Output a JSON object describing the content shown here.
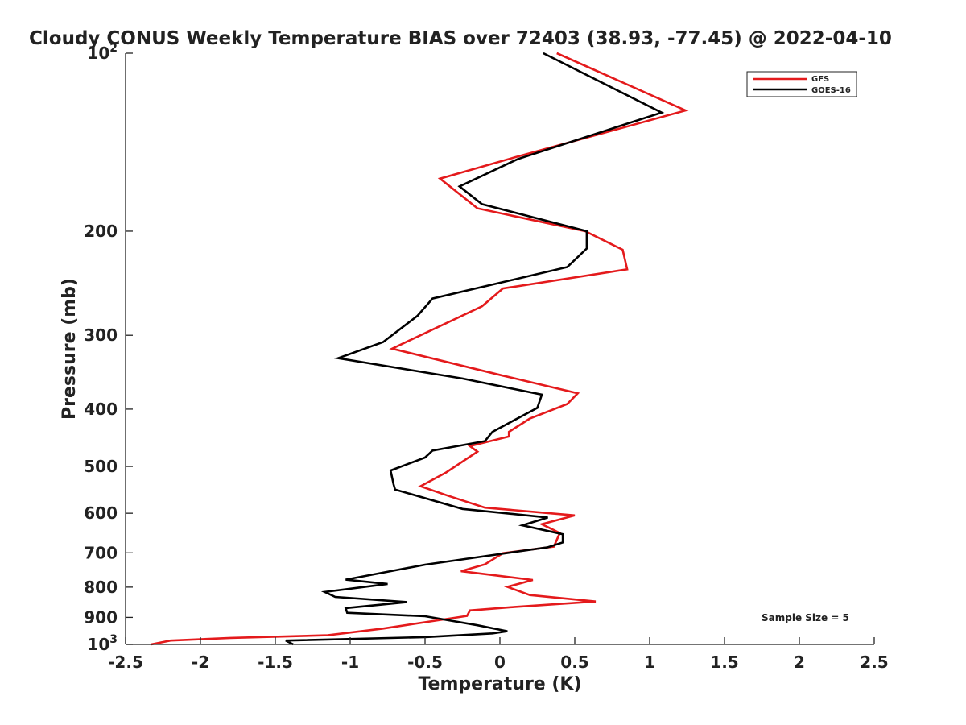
{
  "chart_data": {
    "type": "line",
    "title": "Cloudy CONUS Weekly Temperature BIAS over 72403 (38.93, -77.45) @ 2022-04-10",
    "xlabel": "Temperature (K)",
    "ylabel": "Pressure (mb)",
    "xlim": [
      -2.5,
      2.5
    ],
    "ylim": [
      100,
      1000
    ],
    "y_scale": "log",
    "y_reversed": true,
    "grid": false,
    "legend_position": "top-right",
    "x_ticks": [
      {
        "value": -2.5,
        "label": "-2.5"
      },
      {
        "value": -2,
        "label": "-2"
      },
      {
        "value": -1.5,
        "label": "-1.5"
      },
      {
        "value": -1,
        "label": "-1"
      },
      {
        "value": -0.5,
        "label": "-0.5"
      },
      {
        "value": 0,
        "label": "0"
      },
      {
        "value": 0.5,
        "label": "0.5"
      },
      {
        "value": 1,
        "label": "1"
      },
      {
        "value": 1.5,
        "label": "1.5"
      },
      {
        "value": 2,
        "label": "2"
      },
      {
        "value": 2.5,
        "label": "2.5"
      }
    ],
    "y_ticks": [
      {
        "value": 100,
        "label": "10",
        "sup": "2"
      },
      {
        "value": 200,
        "label": "200"
      },
      {
        "value": 300,
        "label": "300"
      },
      {
        "value": 400,
        "label": "400"
      },
      {
        "value": 500,
        "label": "500"
      },
      {
        "value": 600,
        "label": "600"
      },
      {
        "value": 700,
        "label": "700"
      },
      {
        "value": 800,
        "label": "800"
      },
      {
        "value": 900,
        "label": "900"
      },
      {
        "value": 1000,
        "label": "10",
        "sup": "3"
      }
    ],
    "series": [
      {
        "name": "GFS",
        "color": "#e41a1c",
        "points": [
          [
            0.38,
            100
          ],
          [
            1.24,
            125
          ],
          [
            0.1,
            150
          ],
          [
            -0.4,
            163
          ],
          [
            -0.15,
            183
          ],
          [
            0.57,
            200
          ],
          [
            0.82,
            215
          ],
          [
            0.85,
            232
          ],
          [
            0.02,
            250
          ],
          [
            -0.12,
            268
          ],
          [
            -0.72,
            316
          ],
          [
            0.02,
            351
          ],
          [
            0.52,
            376
          ],
          [
            0.45,
            392
          ],
          [
            0.2,
            415
          ],
          [
            0.06,
            437
          ],
          [
            0.06,
            445
          ],
          [
            -0.2,
            462
          ],
          [
            -0.15,
            472
          ],
          [
            -0.36,
            512
          ],
          [
            -0.53,
            540
          ],
          [
            -0.35,
            560
          ],
          [
            -0.1,
            587
          ],
          [
            0.5,
            605
          ],
          [
            0.28,
            626
          ],
          [
            0.4,
            648
          ],
          [
            0.36,
            683
          ],
          [
            0.02,
            701
          ],
          [
            -0.1,
            732
          ],
          [
            -0.26,
            752
          ],
          [
            0.22,
            778
          ],
          [
            0.05,
            799
          ],
          [
            0.2,
            825
          ],
          [
            0.64,
            846
          ],
          [
            0.1,
            864
          ],
          [
            -0.2,
            876
          ],
          [
            -0.22,
            895
          ],
          [
            -0.78,
            940
          ],
          [
            -1.15,
            965
          ],
          [
            -1.8,
            975
          ],
          [
            -2.2,
            985
          ],
          [
            -2.33,
            1000
          ]
        ]
      },
      {
        "name": "GOES-16",
        "color": "#000000",
        "points": [
          [
            0.29,
            100
          ],
          [
            1.08,
            126
          ],
          [
            0.12,
            151
          ],
          [
            -0.27,
            168
          ],
          [
            -0.12,
            180
          ],
          [
            0.58,
            200
          ],
          [
            0.58,
            214
          ],
          [
            0.45,
            230
          ],
          [
            -0.45,
            260
          ],
          [
            -0.55,
            278
          ],
          [
            -0.78,
            308
          ],
          [
            -1.08,
            328
          ],
          [
            -0.25,
            355
          ],
          [
            0.28,
            378
          ],
          [
            0.25,
            398
          ],
          [
            -0.05,
            437
          ],
          [
            -0.1,
            453
          ],
          [
            -0.45,
            470
          ],
          [
            -0.5,
            483
          ],
          [
            -0.73,
            508
          ],
          [
            -0.71,
            536
          ],
          [
            -0.7,
            547
          ],
          [
            -0.25,
            590
          ],
          [
            0.32,
            610
          ],
          [
            0.15,
            629
          ],
          [
            0.42,
            651
          ],
          [
            0.42,
            672
          ],
          [
            0.32,
            685
          ],
          [
            -0.5,
            733
          ],
          [
            -1.03,
            777
          ],
          [
            -0.75,
            790
          ],
          [
            -1.17,
            815
          ],
          [
            -1.1,
            831
          ],
          [
            -0.62,
            848
          ],
          [
            -1.03,
            868
          ],
          [
            -1.02,
            884
          ],
          [
            -0.5,
            896
          ],
          [
            -0.15,
            928
          ],
          [
            0.05,
            950
          ],
          [
            -0.05,
            958
          ],
          [
            -0.5,
            972
          ],
          [
            -1.43,
            985
          ],
          [
            -1.38,
            1000
          ]
        ]
      }
    ],
    "annotation": "Sample Size = 5"
  }
}
